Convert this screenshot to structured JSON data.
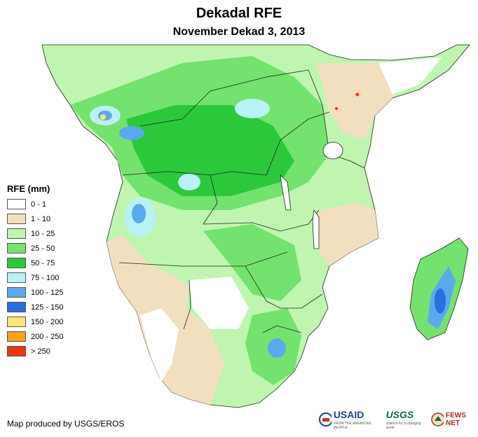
{
  "title": "Dekadal RFE",
  "subtitle": "November Dekad 3, 2013",
  "legend": {
    "title": "RFE (mm)",
    "items": [
      {
        "label": "0 - 1",
        "color": "#ffffff"
      },
      {
        "label": "1 - 10",
        "color": "#f2dfc0"
      },
      {
        "label": "10 - 25",
        "color": "#bff5b0"
      },
      {
        "label": "25 - 50",
        "color": "#74e26e"
      },
      {
        "label": "50 - 75",
        "color": "#2bc83c"
      },
      {
        "label": "75 - 100",
        "color": "#b8f2f7"
      },
      {
        "label": "100 - 125",
        "color": "#5aa9ee"
      },
      {
        "label": "125 - 150",
        "color": "#2b6ee0"
      },
      {
        "label": "150 - 200",
        "color": "#fbe67a"
      },
      {
        "label": "200 - 250",
        "color": "#f7a21b"
      },
      {
        "label": "> 250",
        "color": "#e8390f"
      }
    ]
  },
  "credit": "Map produced by USGS/EROS",
  "logos": {
    "usaid": "USAID",
    "usaid_tag": "FROM THE AMERICAN PEOPLE",
    "usgs": "USGS",
    "usgs_tag": "science for a changing world",
    "fews": "FEWS NET"
  }
}
